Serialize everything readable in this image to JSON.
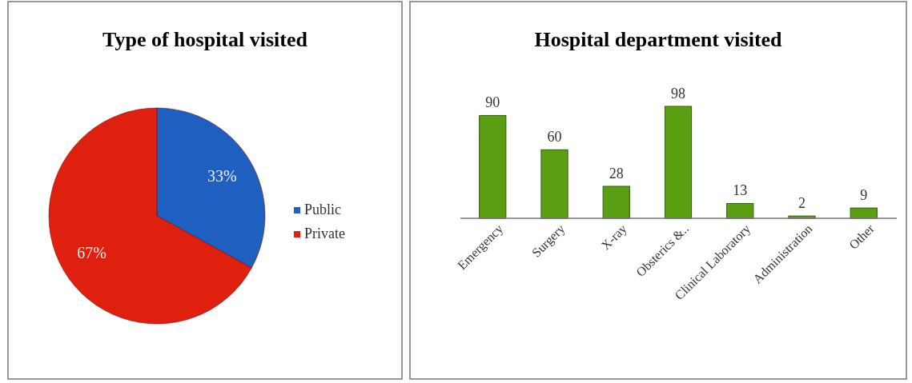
{
  "chart_data": [
    {
      "type": "pie",
      "title": "Type of hospital visited",
      "categories": [
        "Public",
        "Private"
      ],
      "values": [
        33,
        67
      ],
      "colors": [
        "#1f5fbf",
        "#e0200f"
      ],
      "value_labels": [
        "33%",
        "67%"
      ],
      "legend": "right"
    },
    {
      "type": "bar",
      "title": "Hospital department visited",
      "categories": [
        "Emergency",
        "Surgery",
        "X-ray",
        "Obsterics &..",
        "Clinical Laboratory",
        "Administration",
        "Other"
      ],
      "values": [
        90,
        60,
        28,
        98,
        13,
        2,
        9
      ],
      "color": "#5a9e12",
      "data_labels": true
    }
  ]
}
